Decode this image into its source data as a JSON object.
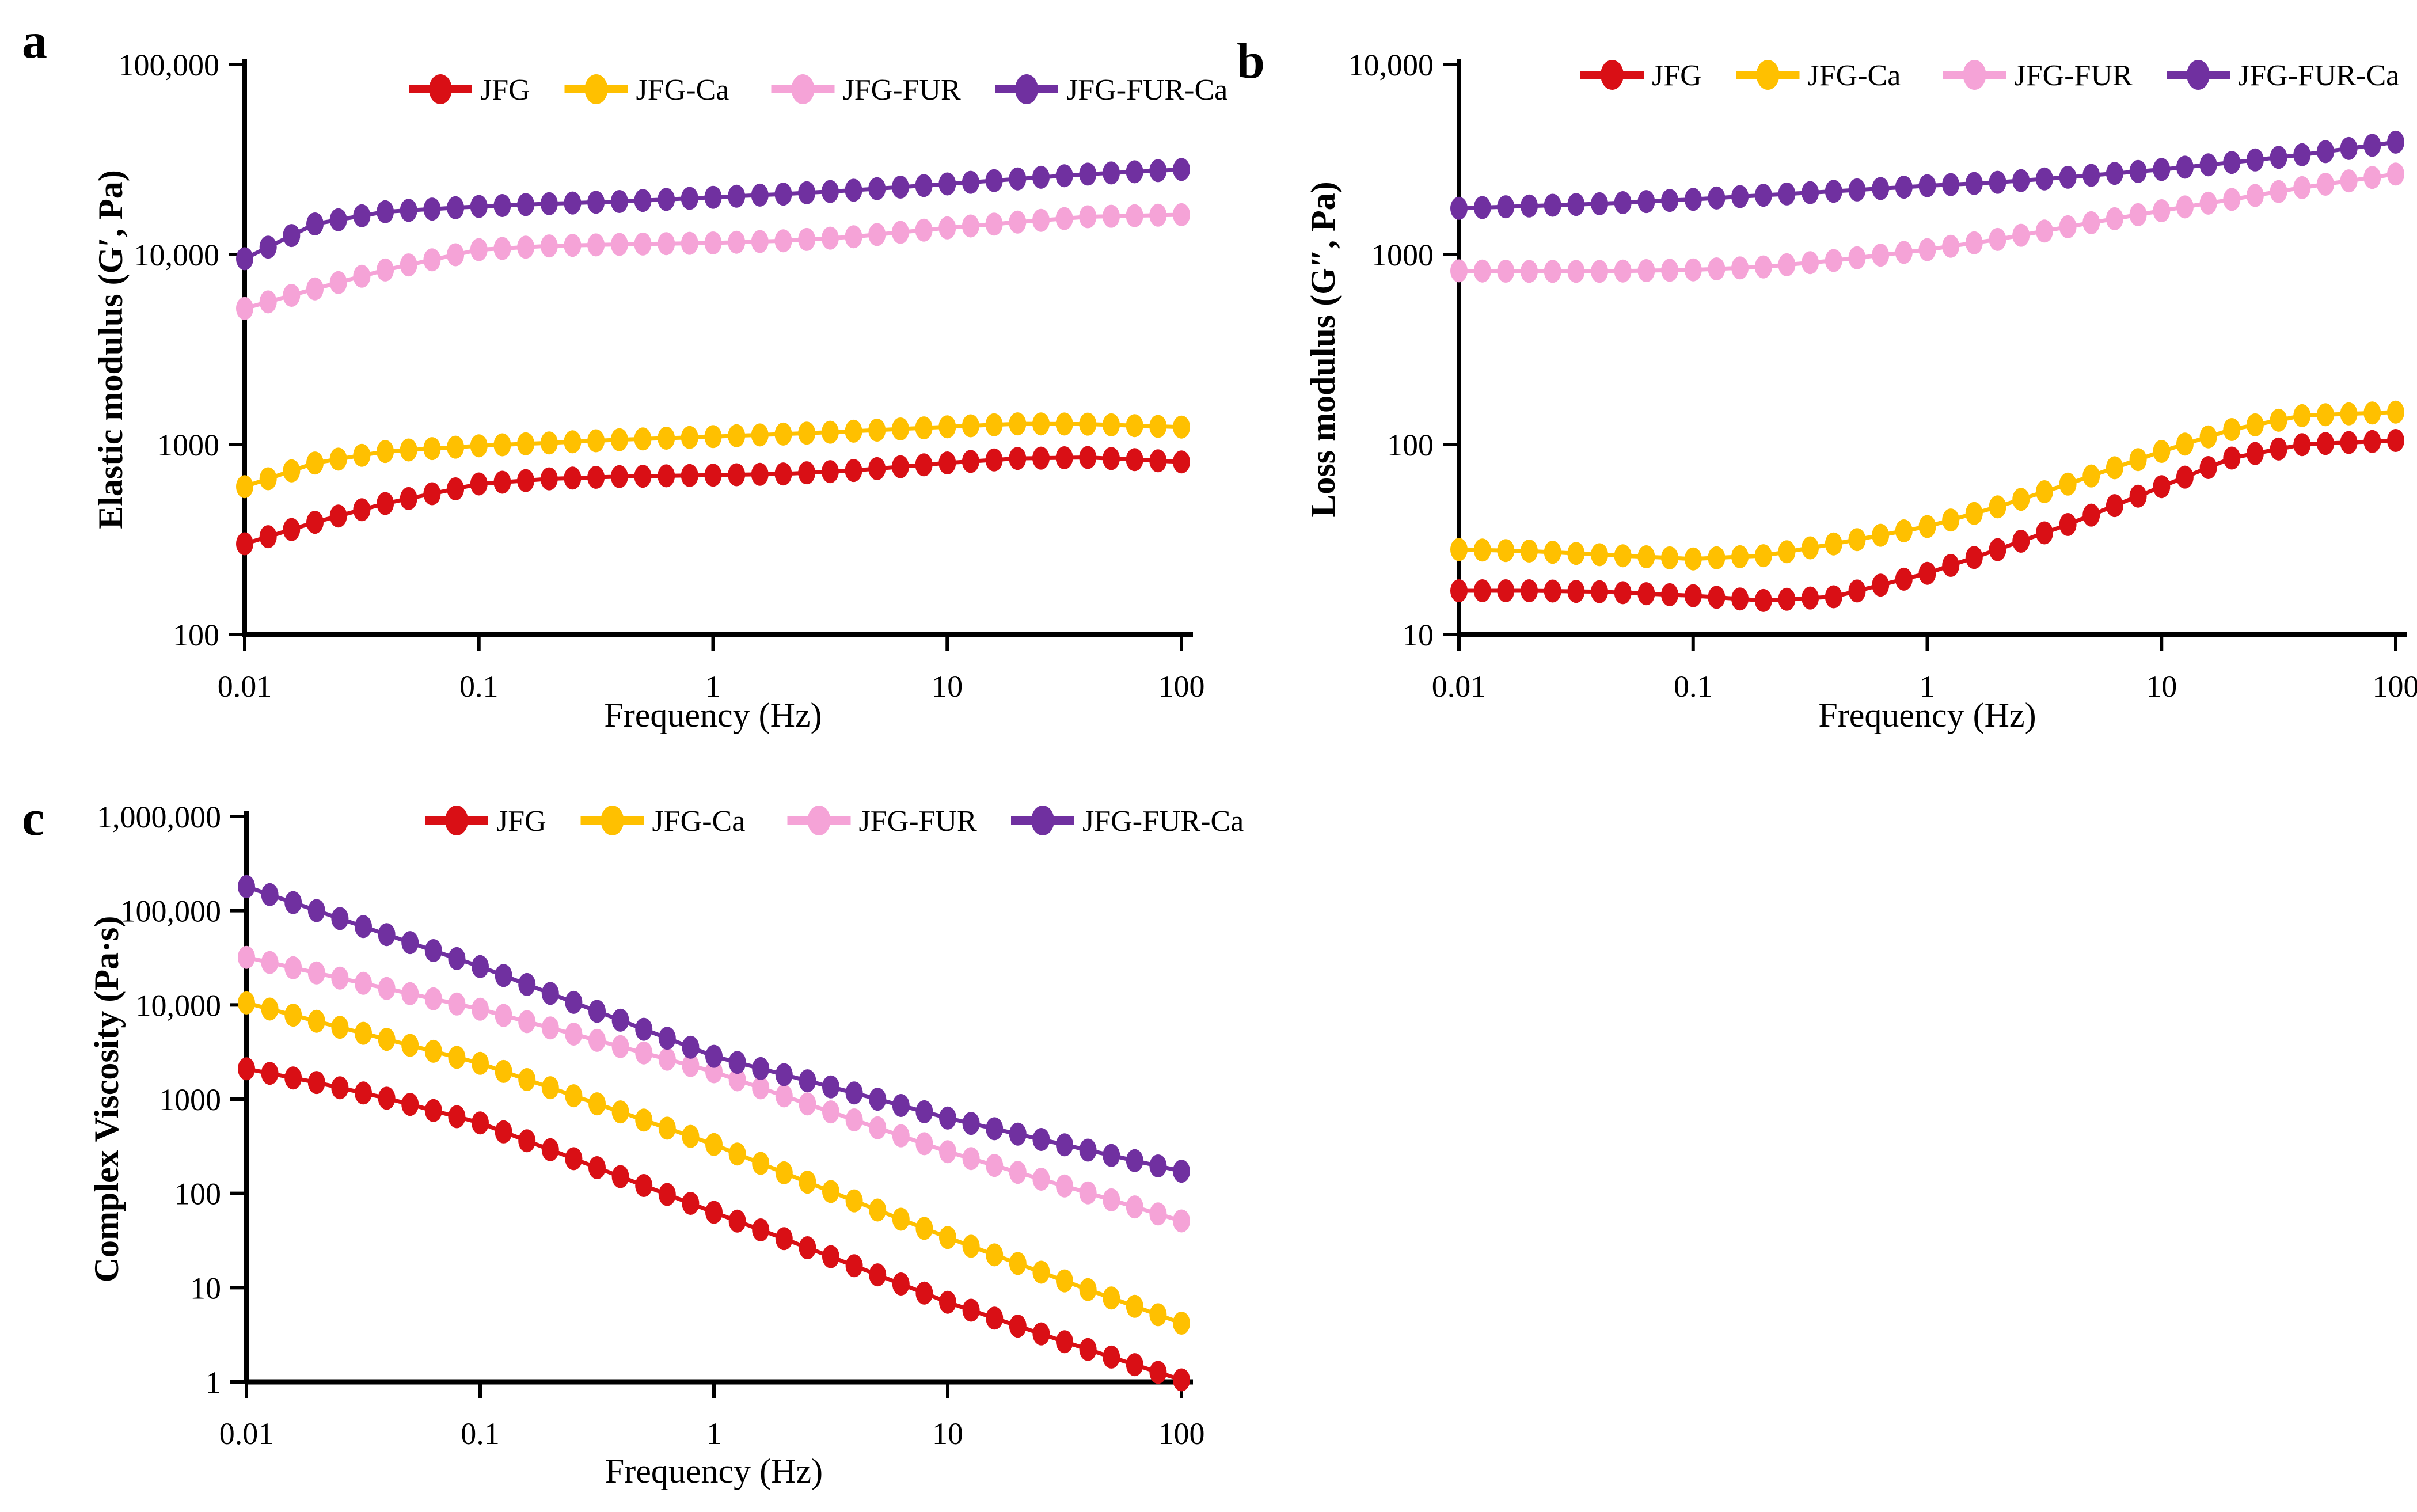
{
  "figure": {
    "background": "#ffffff",
    "text_color": "#000000",
    "panel_letters": [
      "a",
      "b",
      "c"
    ]
  },
  "colors": {
    "jfg": "#D90F15",
    "jfg_ca": "#FFC000",
    "jfg_fur": "#F5A3D7",
    "jfg_fur_ca": "#7030A0"
  },
  "chart_data": [
    {
      "id": "a",
      "type": "line",
      "panel_letter": "a",
      "xlabel": "Frequency (Hz)",
      "ylabel": "Elastic modulus (G′, Pa)",
      "xlim": [
        0.01,
        100
      ],
      "ylim": [
        100,
        100000
      ],
      "x_ticks": [
        {
          "v": 0.01,
          "label": "0.01"
        },
        {
          "v": 0.1,
          "label": "0.1"
        },
        {
          "v": 1,
          "label": "1"
        },
        {
          "v": 10,
          "label": "10"
        },
        {
          "v": 100,
          "label": "100"
        }
      ],
      "y_ticks": [
        {
          "v": 100000,
          "label": "100,000"
        },
        {
          "v": 10000,
          "label": "10,000"
        },
        {
          "v": 1000,
          "label": "1000"
        },
        {
          "v": 100,
          "label": "100"
        }
      ],
      "legend_position": "top-inside",
      "grid": false,
      "markers_per_decade": 10,
      "series": [
        {
          "name": "JFG",
          "color": "#D90F15",
          "points": [
            [
              0.01,
              300
            ],
            [
              0.02,
              390
            ],
            [
              0.04,
              490
            ],
            [
              0.1,
              620
            ],
            [
              0.2,
              660
            ],
            [
              0.4,
              678
            ],
            [
              1,
              690
            ],
            [
              2,
              700
            ],
            [
              4,
              730
            ],
            [
              10,
              800
            ],
            [
              20,
              845
            ],
            [
              40,
              855
            ],
            [
              100,
              810
            ]
          ]
        },
        {
          "name": "JFG-Ca",
          "color": "#FFC000",
          "points": [
            [
              0.01,
              600
            ],
            [
              0.02,
              800
            ],
            [
              0.04,
              920
            ],
            [
              0.1,
              985
            ],
            [
              0.2,
              1020
            ],
            [
              0.4,
              1060
            ],
            [
              1,
              1100
            ],
            [
              2,
              1135
            ],
            [
              4,
              1175
            ],
            [
              10,
              1240
            ],
            [
              20,
              1285
            ],
            [
              40,
              1280
            ],
            [
              100,
              1235
            ]
          ]
        },
        {
          "name": "JFG-FUR",
          "color": "#F5A3D7",
          "points": [
            [
              0.01,
              5200
            ],
            [
              0.02,
              6600
            ],
            [
              0.04,
              8300
            ],
            [
              0.1,
              10600
            ],
            [
              0.2,
              11100
            ],
            [
              0.4,
              11300
            ],
            [
              1,
              11500
            ],
            [
              2,
              11800
            ],
            [
              4,
              12400
            ],
            [
              10,
              13800
            ],
            [
              20,
              14800
            ],
            [
              40,
              15800
            ],
            [
              100,
              16200
            ]
          ]
        },
        {
          "name": "JFG-FUR-Ca",
          "color": "#7030A0",
          "points": [
            [
              0.01,
              9500
            ],
            [
              0.02,
              14500
            ],
            [
              0.04,
              16800
            ],
            [
              0.1,
              17900
            ],
            [
              0.2,
              18500
            ],
            [
              0.4,
              19000
            ],
            [
              1,
              20000
            ],
            [
              2,
              20800
            ],
            [
              4,
              21800
            ],
            [
              10,
              23500
            ],
            [
              20,
              25000
            ],
            [
              40,
              26500
            ],
            [
              100,
              28000
            ]
          ]
        }
      ]
    },
    {
      "id": "b",
      "type": "line",
      "panel_letter": "b",
      "xlabel": "Frequency (Hz)",
      "ylabel": "Loss modulus (G″, Pa)",
      "xlim": [
        0.01,
        100
      ],
      "ylim": [
        10,
        10000
      ],
      "x_ticks": [
        {
          "v": 0.01,
          "label": "0.01"
        },
        {
          "v": 0.1,
          "label": "0.1"
        },
        {
          "v": 1,
          "label": "1"
        },
        {
          "v": 10,
          "label": "10"
        },
        {
          "v": 100,
          "label": "100"
        }
      ],
      "y_ticks": [
        {
          "v": 10000,
          "label": "10,000"
        },
        {
          "v": 1000,
          "label": "1000"
        },
        {
          "v": 100,
          "label": "100"
        },
        {
          "v": 10,
          "label": "10"
        }
      ],
      "legend_position": "top-inside",
      "grid": false,
      "markers_per_decade": 10,
      "series": [
        {
          "name": "JFG",
          "color": "#D90F15",
          "points": [
            [
              0.01,
              17
            ],
            [
              0.02,
              17
            ],
            [
              0.04,
              16.8
            ],
            [
              0.1,
              16
            ],
            [
              0.2,
              15.1
            ],
            [
              0.4,
              15.8
            ],
            [
              1,
              21
            ],
            [
              2,
              28
            ],
            [
              4,
              38
            ],
            [
              10,
              60
            ],
            [
              20,
              85
            ],
            [
              40,
              100
            ],
            [
              100,
              105
            ]
          ]
        },
        {
          "name": "JFG-Ca",
          "color": "#FFC000",
          "points": [
            [
              0.01,
              28
            ],
            [
              0.02,
              27.5
            ],
            [
              0.04,
              26.3
            ],
            [
              0.1,
              25
            ],
            [
              0.2,
              26
            ],
            [
              0.4,
              30
            ],
            [
              1,
              37
            ],
            [
              2,
              47
            ],
            [
              4,
              62
            ],
            [
              10,
              92
            ],
            [
              20,
              120
            ],
            [
              40,
              142
            ],
            [
              100,
              148
            ]
          ]
        },
        {
          "name": "JFG-FUR",
          "color": "#F5A3D7",
          "points": [
            [
              0.01,
              820
            ],
            [
              0.02,
              815
            ],
            [
              0.04,
              815
            ],
            [
              0.1,
              830
            ],
            [
              0.2,
              860
            ],
            [
              0.4,
              930
            ],
            [
              1,
              1060
            ],
            [
              2,
              1200
            ],
            [
              4,
              1400
            ],
            [
              10,
              1700
            ],
            [
              20,
              1950
            ],
            [
              40,
              2250
            ],
            [
              100,
              2650
            ]
          ]
        },
        {
          "name": "JFG-FUR-Ca",
          "color": "#7030A0",
          "points": [
            [
              0.01,
              1750
            ],
            [
              0.02,
              1800
            ],
            [
              0.04,
              1850
            ],
            [
              0.1,
              1950
            ],
            [
              0.2,
              2050
            ],
            [
              0.4,
              2150
            ],
            [
              1,
              2300
            ],
            [
              2,
              2400
            ],
            [
              4,
              2550
            ],
            [
              10,
              2800
            ],
            [
              20,
              3050
            ],
            [
              40,
              3350
            ],
            [
              100,
              3900
            ]
          ]
        }
      ]
    },
    {
      "id": "c",
      "type": "line",
      "panel_letter": "c",
      "xlabel": "Frequency (Hz)",
      "ylabel": "Complex Viscosity (Pa·s)",
      "xlim": [
        0.01,
        100
      ],
      "ylim": [
        1,
        1000000
      ],
      "x_ticks": [
        {
          "v": 0.01,
          "label": "0.01"
        },
        {
          "v": 0.1,
          "label": "0.1"
        },
        {
          "v": 1,
          "label": "1"
        },
        {
          "v": 10,
          "label": "10"
        },
        {
          "v": 100,
          "label": "100"
        }
      ],
      "y_ticks": [
        {
          "v": 1000000,
          "label": "1,000,000"
        },
        {
          "v": 100000,
          "label": "100,000"
        },
        {
          "v": 10000,
          "label": "10,000"
        },
        {
          "v": 1000,
          "label": "1000"
        },
        {
          "v": 100,
          "label": "100"
        },
        {
          "v": 10,
          "label": "10"
        },
        {
          "v": 1,
          "label": "1"
        }
      ],
      "legend_position": "top-inside",
      "grid": false,
      "markers_per_decade": 10,
      "series": [
        {
          "name": "JFG",
          "color": "#D90F15",
          "points": [
            [
              0.01,
              2100
            ],
            [
              0.02,
              1500
            ],
            [
              0.04,
              1020
            ],
            [
              0.1,
              560
            ],
            [
              0.2,
              290
            ],
            [
              0.4,
              150
            ],
            [
              1,
              63
            ],
            [
              2,
              33
            ],
            [
              4,
              17
            ],
            [
              10,
              7
            ],
            [
              20,
              3.9
            ],
            [
              40,
              2.2
            ],
            [
              100,
              1.05
            ]
          ]
        },
        {
          "name": "JFG-Ca",
          "color": "#FFC000",
          "points": [
            [
              0.01,
              10500
            ],
            [
              0.02,
              6700
            ],
            [
              0.04,
              4300
            ],
            [
              0.1,
              2400
            ],
            [
              0.2,
              1320
            ],
            [
              0.4,
              730
            ],
            [
              1,
              330
            ],
            [
              2,
              165
            ],
            [
              4,
              83
            ],
            [
              10,
              34
            ],
            [
              20,
              18
            ],
            [
              40,
              9.5
            ],
            [
              100,
              4.2
            ]
          ]
        },
        {
          "name": "JFG-FUR",
          "color": "#F5A3D7",
          "points": [
            [
              0.01,
              32000
            ],
            [
              0.02,
              21800
            ],
            [
              0.04,
              14900
            ],
            [
              0.1,
              9000
            ],
            [
              0.2,
              5700
            ],
            [
              0.4,
              3600
            ],
            [
              1,
              1950
            ],
            [
              2,
              1080
            ],
            [
              4,
              600
            ],
            [
              10,
              277
            ],
            [
              20,
              167
            ],
            [
              40,
              101
            ],
            [
              100,
              51
            ]
          ]
        },
        {
          "name": "JFG-FUR-Ca",
          "color": "#7030A0",
          "points": [
            [
              0.01,
              180000
            ],
            [
              0.02,
              100000
            ],
            [
              0.04,
              55500
            ],
            [
              0.1,
              25500
            ],
            [
              0.2,
              13200
            ],
            [
              0.4,
              6850
            ],
            [
              1,
              2850
            ],
            [
              2,
              1815
            ],
            [
              4,
              1160
            ],
            [
              10,
              630
            ],
            [
              20,
              425
            ],
            [
              40,
              287
            ],
            [
              100,
              172
            ]
          ]
        }
      ]
    }
  ]
}
